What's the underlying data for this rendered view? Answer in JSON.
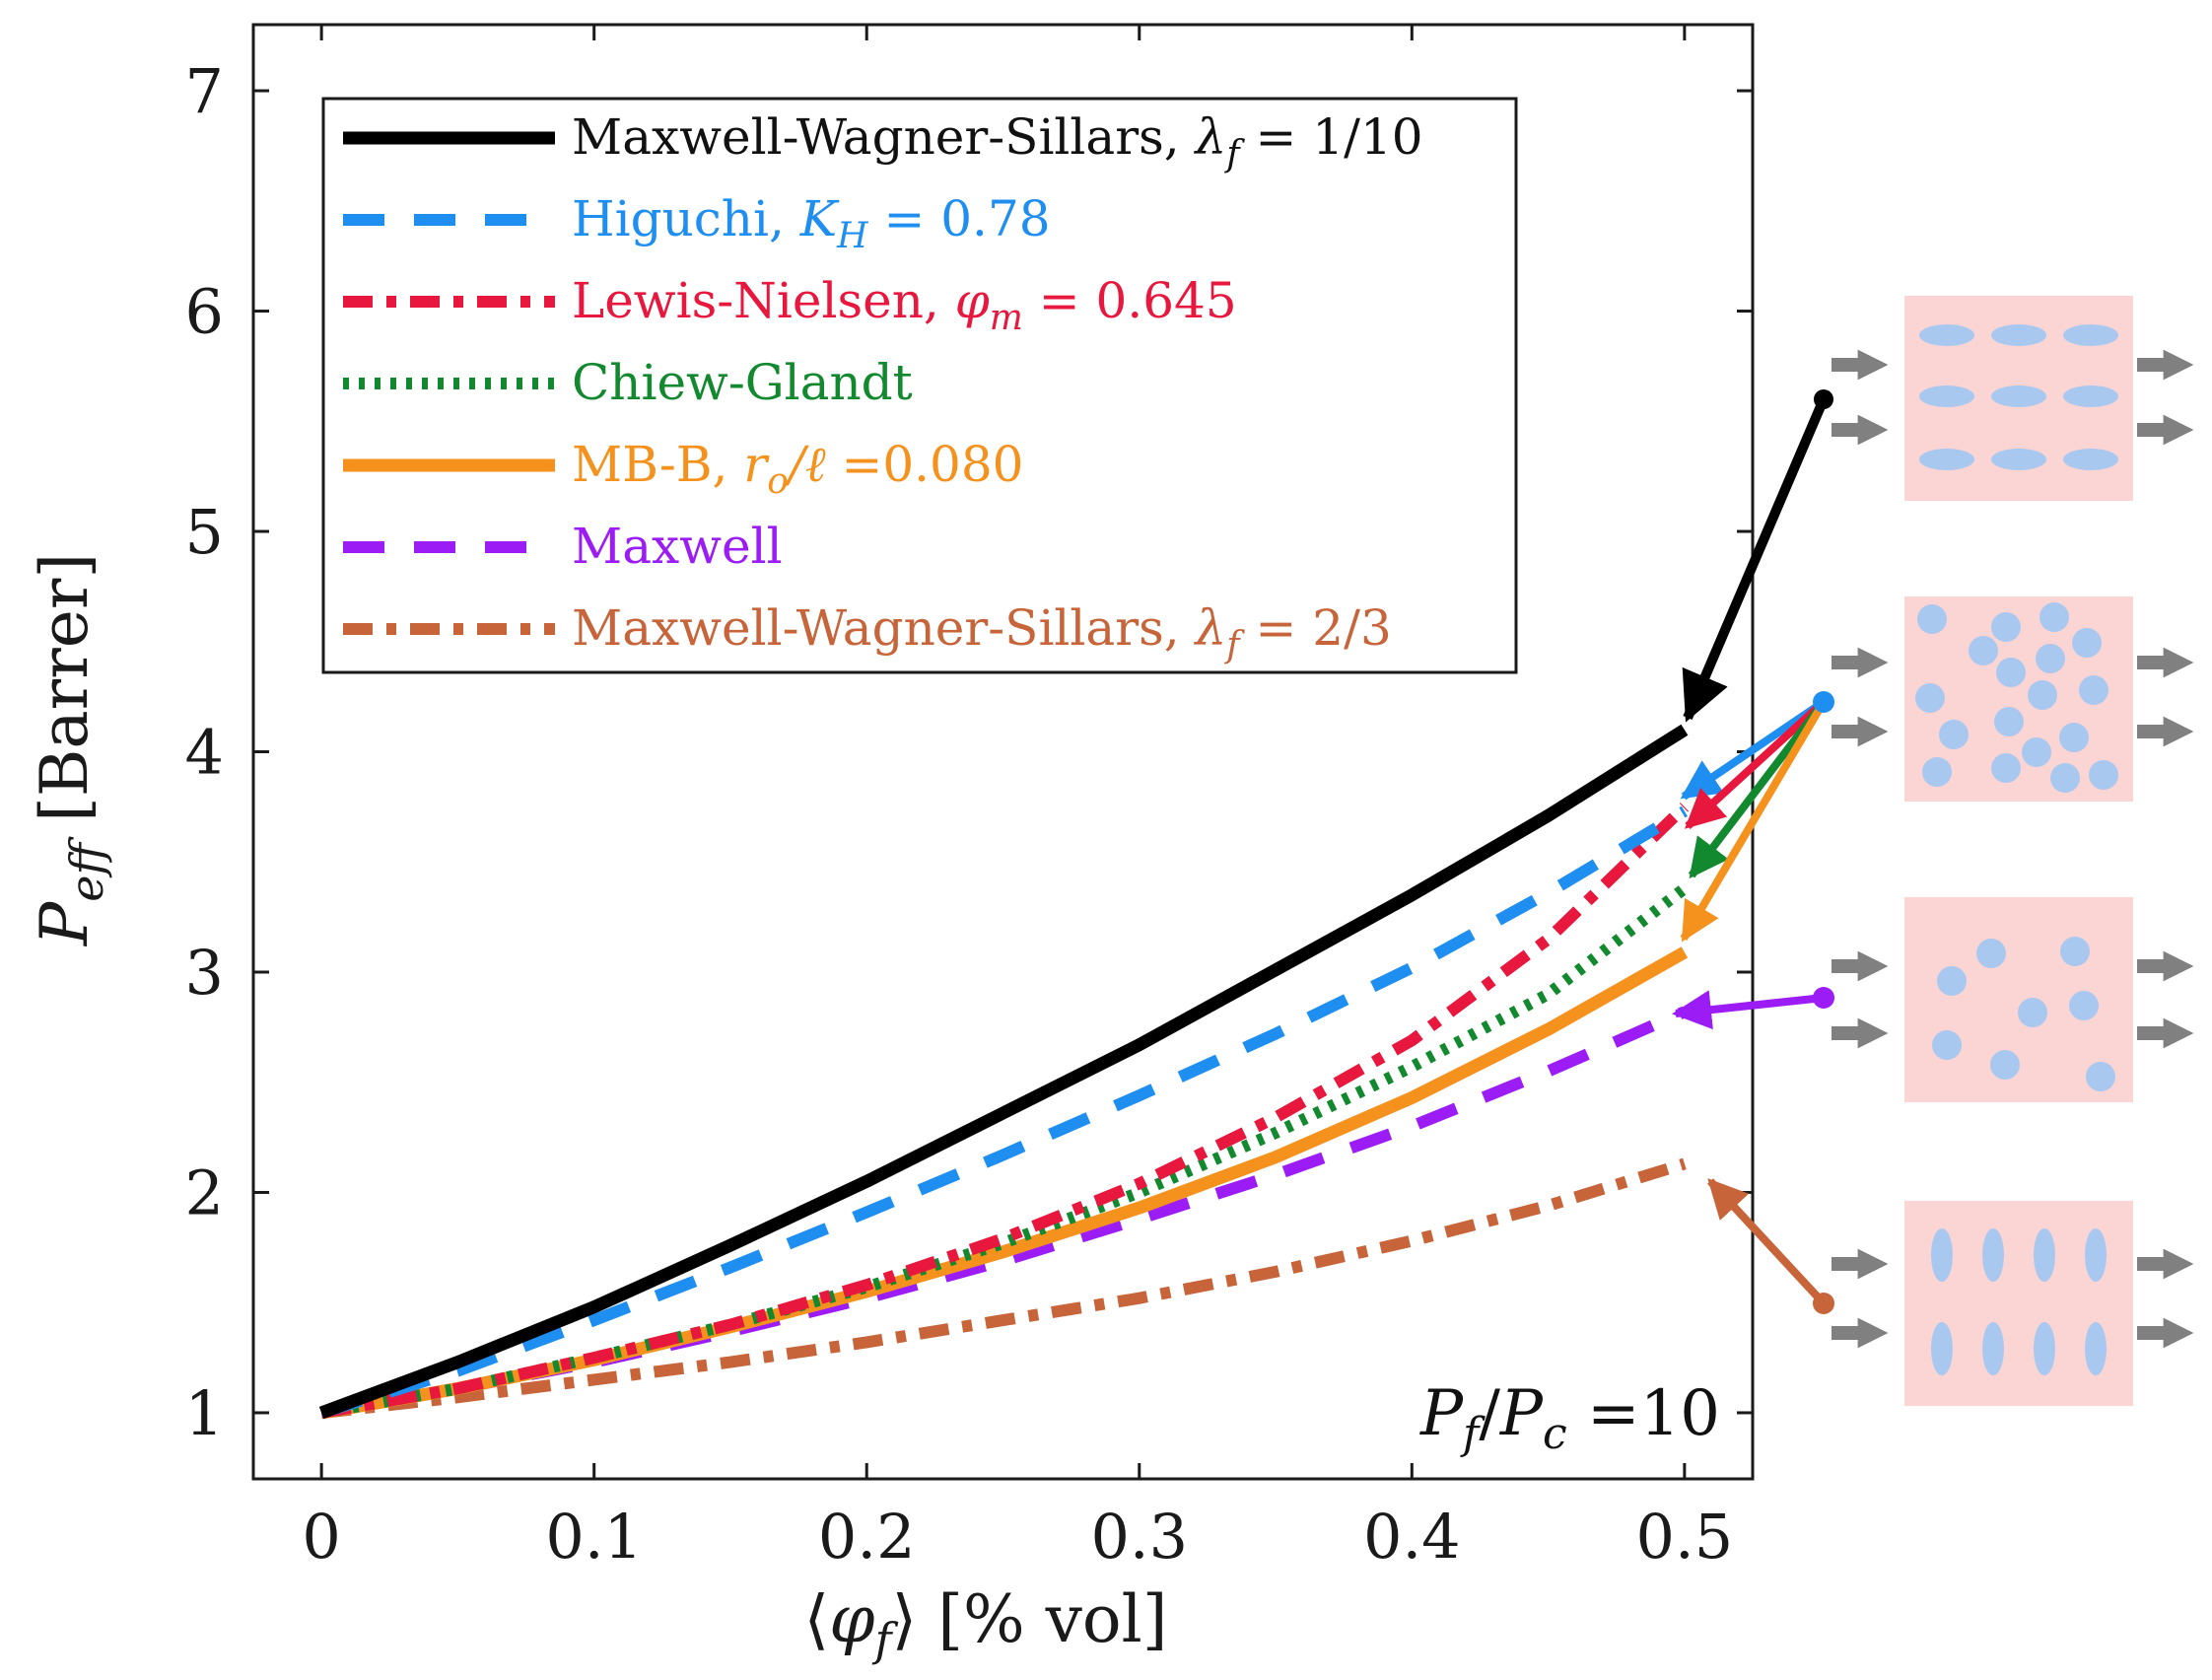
{
  "chart_data": {
    "type": "line",
    "title": "",
    "xlabel": "⟨φ_f⟩ [% vol]",
    "ylabel": "P_eff [Barrer]",
    "xlim": [
      -0.025,
      0.525
    ],
    "ylim": [
      0.7,
      7.3
    ],
    "x_ticks": [
      "0",
      "0.1",
      "0.2",
      "0.3",
      "0.4",
      "0.5"
    ],
    "y_ticks": [
      "1",
      "2",
      "3",
      "4",
      "5",
      "6",
      "7"
    ],
    "x_tick_values": [
      0,
      0.1,
      0.2,
      0.3,
      0.4,
      0.5
    ],
    "y_tick_values": [
      1,
      2,
      3,
      4,
      5,
      6,
      7
    ],
    "grid": false,
    "legend_position": "top-left",
    "annotation": "P_f/P_c = 10",
    "series": [
      {
        "name": "Maxwell-Wagner-Sillars, λ_f = 1/10",
        "color": "#000000",
        "style": "solid",
        "x": [
          0,
          0.05,
          0.1,
          0.15,
          0.2,
          0.25,
          0.3,
          0.35,
          0.4,
          0.45,
          0.5
        ],
        "values": [
          1.0,
          1.23,
          1.48,
          1.76,
          2.05,
          2.36,
          2.67,
          3.01,
          3.35,
          3.71,
          4.1
        ]
      },
      {
        "name": "Higuchi, K_H = 0.78",
        "color": "#1f8ef1",
        "style": "dashed",
        "x": [
          0,
          0.05,
          0.1,
          0.15,
          0.2,
          0.25,
          0.3,
          0.35,
          0.4,
          0.45,
          0.5
        ],
        "values": [
          1.0,
          1.19,
          1.42,
          1.66,
          1.91,
          2.17,
          2.44,
          2.72,
          3.02,
          3.36,
          3.73
        ]
      },
      {
        "name": "Lewis-Nielsen, φ_m = 0.645",
        "color": "#e8173d",
        "style": "dashdot",
        "x": [
          0,
          0.05,
          0.1,
          0.15,
          0.2,
          0.25,
          0.3,
          0.35,
          0.4,
          0.45,
          0.5
        ],
        "values": [
          1.0,
          1.11,
          1.25,
          1.4,
          1.58,
          1.79,
          2.04,
          2.34,
          2.69,
          3.15,
          3.75
        ]
      },
      {
        "name": "Chiew-Glandt",
        "color": "#13892f",
        "style": "dotted",
        "x": [
          0,
          0.05,
          0.1,
          0.15,
          0.2,
          0.25,
          0.3,
          0.35,
          0.4,
          0.45,
          0.5
        ],
        "values": [
          1.0,
          1.11,
          1.25,
          1.4,
          1.57,
          1.77,
          2.0,
          2.27,
          2.57,
          2.9,
          3.38
        ]
      },
      {
        "name": "MB-B, r_o/ℓ =0.080",
        "color": "#f5921e",
        "style": "solid",
        "x": [
          0,
          0.05,
          0.1,
          0.15,
          0.2,
          0.25,
          0.3,
          0.35,
          0.4,
          0.45,
          0.5
        ],
        "values": [
          1.0,
          1.11,
          1.24,
          1.39,
          1.55,
          1.73,
          1.93,
          2.16,
          2.43,
          2.74,
          3.09
        ]
      },
      {
        "name": "Maxwell",
        "color": "#9b1cf5",
        "style": "dashed",
        "x": [
          0,
          0.05,
          0.1,
          0.15,
          0.2,
          0.25,
          0.3,
          0.35,
          0.4,
          0.45,
          0.5
        ],
        "values": [
          1.0,
          1.11,
          1.23,
          1.37,
          1.52,
          1.69,
          1.88,
          2.08,
          2.3,
          2.55,
          2.82
        ]
      },
      {
        "name": "Maxwell-Wagner-Sillars, λ_f = 2/3",
        "color": "#c7643a",
        "style": "dashdot",
        "x": [
          0,
          0.05,
          0.1,
          0.15,
          0.2,
          0.25,
          0.3,
          0.35,
          0.4,
          0.45,
          0.5
        ],
        "values": [
          1.0,
          1.07,
          1.15,
          1.23,
          1.32,
          1.42,
          1.52,
          1.64,
          1.78,
          1.94,
          2.13
        ]
      }
    ]
  },
  "insets": [
    {
      "name": "oriented-horizontal-ellipses",
      "points_to": "Maxwell-Wagner-Sillars, λ_f = 1/10",
      "color": "#000000"
    },
    {
      "name": "random-spheres-dense",
      "points_to": "Higuchi / Lewis-Nielsen / Chiew-Glandt / MB-B",
      "color": "#1f8ef1"
    },
    {
      "name": "random-spheres-dilute",
      "points_to": "Maxwell",
      "color": "#9b1cf5"
    },
    {
      "name": "oriented-vertical-ellipses",
      "points_to": "Maxwell-Wagner-Sillars, λ_f = 2/3",
      "color": "#c7643a"
    }
  ],
  "colors": {
    "inset_bg": "#fbd4d4",
    "particle": "#a9c8ef",
    "flow_arrow": "#808080"
  }
}
